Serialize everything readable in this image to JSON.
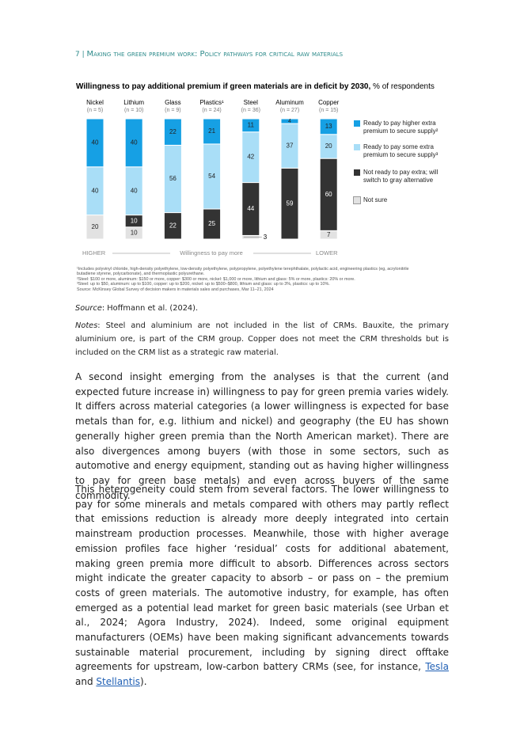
{
  "header": {
    "page": "7",
    "separator": "|",
    "title": "Making the green premium work: Policy pathways for critical raw materials"
  },
  "chart_data": {
    "type": "bar",
    "stacked": true,
    "title": "Willingness to pay additional premium if green materials are in deficit by 2030,",
    "subtitle": "% of respondents",
    "categories": [
      "Nickel",
      "Lithium",
      "Glass",
      "Plastics¹",
      "Steel",
      "Aluminum",
      "Copper"
    ],
    "sample_sizes": [
      "(n = 5)",
      "(n = 10)",
      "(n = 9)",
      "(n = 24)",
      "(n = 36)",
      "(n = 27)",
      "(n = 15)"
    ],
    "series": [
      {
        "name": "Not sure",
        "color": "#e2e2e2",
        "values": [
          20,
          10,
          null,
          null,
          3,
          null,
          7
        ]
      },
      {
        "name": "Not ready to pay extra; will switch to gray alternative",
        "color": "#333333",
        "values": [
          null,
          10,
          22,
          25,
          44,
          59,
          60
        ]
      },
      {
        "name": "Ready to pay some extra premium to secure supply³",
        "color": "#a9def7",
        "values": [
          40,
          40,
          56,
          54,
          42,
          37,
          20
        ]
      },
      {
        "name": "Ready to pay higher extra premium to secure supply²",
        "color": "#16a0e4",
        "values": [
          40,
          40,
          22,
          21,
          11,
          4,
          13
        ]
      }
    ],
    "axis_labels": {
      "left": "HIGHER",
      "center": "Willingness to pay more",
      "right": "LOWER"
    },
    "footnotes": [
      "¹Includes polyvinyl chloride, high-density polyethylene, low-density polyethylene, polypropylene, polyethylene terephthalate, polylactic acid, engineering plastics (eg, acrylonitrile butadiene styrene, polycarbonate), and thermoplastic polyurethane.",
      "²Steel: $100 or more, aluminum: $150 or more, copper: $300 or more, nickel: $1,000 or more, lithium and glass: 5% or more, plastics: 20% or more.",
      "³Steel: up to $50, aluminum: up to $100, copper: up to $200, nickel: up to $500–$800, lithium and glass: up to 3%, plastics: up to 10%.",
      "Source: McKinsey Global Survey of decision makers in materials sales and purchases, Mar 11–21, 2024"
    ]
  },
  "source": {
    "label": "Source",
    "text": ": Hoffmann et al. (2024)."
  },
  "notes": {
    "label": "Notes",
    "text": ": Steel and aluminium are not included in the list of CRMs. Bauxite, the primary aluminium ore, is part of the CRM group. Copper does not meet the CRM thresholds but is included on the CRM list as a strategic raw material."
  },
  "paragraphs": [
    [
      "A second insight emerging from the analyses is that the current (and expected future increase in) willingness to pay for green premia varies widely. It differs across material categories (a lower willingness is expected for base metals than for, e.g. lithium and nickel) and geography (the EU has shown generally higher green premia than the North American market). There are also divergences among buyers (with those in some sectors, such as automotive and energy equipment, standing out as having higher willingness to pay for green base metals) and even across buyers of the same commodity."
    ],
    [
      "This heterogeneity could stem from several factors. The lower willingness to pay for some minerals and metals compared with others may partly reflect that emissions reduction is already more deeply integrated into certain mainstream production processes. Meanwhile, those with higher average emission profiles face higher ‘residual’ costs for additional abatement, making green premia more difficult to absorb. Differences across sectors might indicate the greater capacity to absorb – or pass on – the premium costs of green materials. The automotive industry, for example, has often emerged as a potential lead market for green basic materials (see Urban et al., 2024; Agora Industry, 2024). Indeed, some original equipment manufacturers (OEMs) have been making significant advancements towards sustainable material procurement, including by signing direct offtake agreements for upstream, low-carbon battery CRMs (see, for instance, ",
      "Tesla",
      " and ",
      "Stellantis",
      ")."
    ]
  ]
}
